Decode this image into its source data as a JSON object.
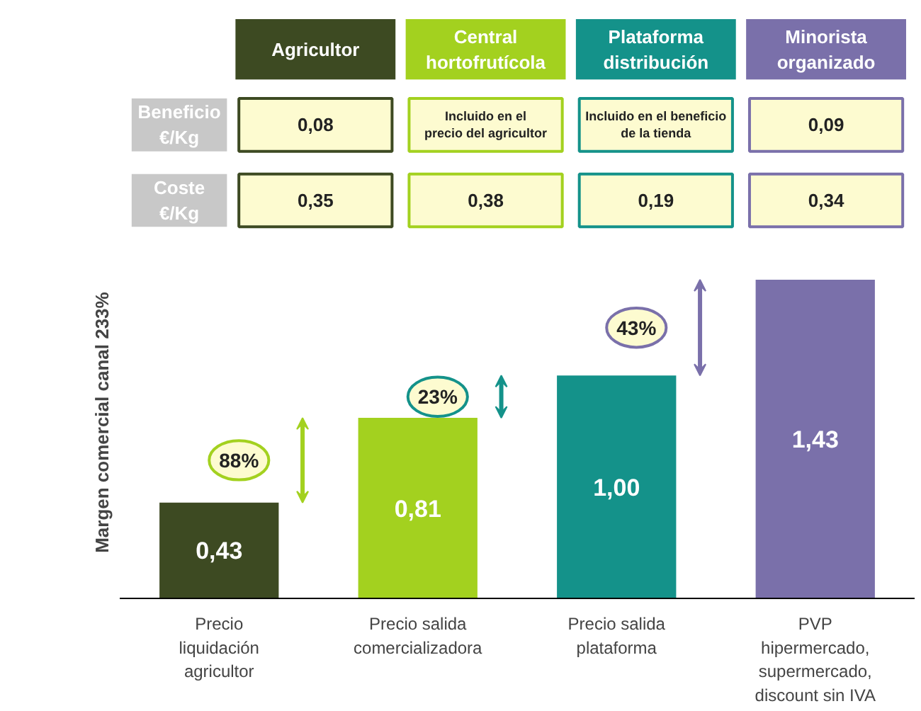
{
  "chart_data": {
    "type": "bar",
    "ylabel": "Margen comercial  canal 233%",
    "categories": [
      "Precio\nliquidación\nagricultor",
      "Precio salida\ncomercializadora",
      "Precio salida\nplataforma",
      "PVP\nhipermercado,\nsupermercado,\ndiscount sin IVA"
    ],
    "values": [
      0.43,
      0.81,
      1.0,
      1.43
    ],
    "colors": [
      "#3d4a22",
      "#a3d11f",
      "#14928a",
      "#7a70aa"
    ],
    "value_labels": [
      "0,43",
      "0,81",
      "1,00",
      "1,43"
    ],
    "grid": false,
    "annotations": [
      "Agricultor",
      "Central\nhortofrutícola",
      "Plataforma\ndistribución",
      "Minorista\norganizado",
      "Beneficio\n€/Kg",
      "0,08",
      "Incluido en el\nprecio del agricultor",
      "Incluido en el beneficio\nde la tienda",
      "0,09",
      "Coste\n€/Kg",
      "0,35",
      "0,38",
      "0,19",
      "0,34",
      "88%",
      "23%",
      "43%"
    ]
  }
}
